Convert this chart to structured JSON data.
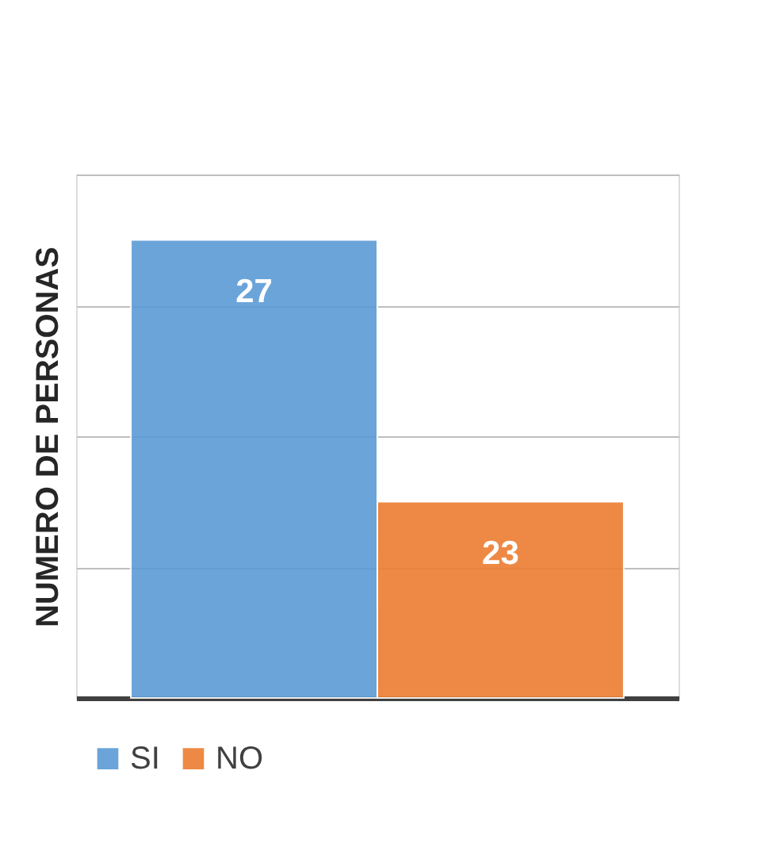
{
  "chart_data": {
    "type": "bar",
    "ylabel": "NUMERO DE PERSONAS",
    "categories": [
      null
    ],
    "series": [
      {
        "name": "SI",
        "color": "#5b9bd5",
        "values": [
          27
        ]
      },
      {
        "name": "NO",
        "color": "#ed7d31",
        "values": [
          23
        ]
      }
    ],
    "ylim": [
      20,
      28
    ],
    "yticks": [
      {
        "value": 20,
        "label": null
      },
      {
        "value": 22,
        "label": null
      },
      {
        "value": 24,
        "label": null
      },
      {
        "value": 26,
        "label": null
      },
      {
        "value": 28,
        "label": null
      }
    ],
    "tick_labels": false,
    "grid": "y",
    "legend": "bottom",
    "data_labels": true
  }
}
